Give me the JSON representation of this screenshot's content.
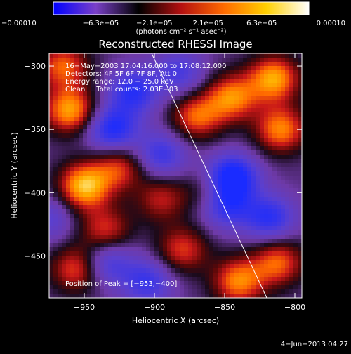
{
  "chart_data": {
    "type": "heatmap",
    "title": "Reconstructed RHESSI Image",
    "xlabel": "Heliocentric X (arcsec)",
    "ylabel": "Heliocentric Y (arcsec)",
    "xlim": [
      -975,
      -795
    ],
    "ylim": [
      -483,
      -290
    ],
    "x_ticks": [
      -950,
      -900,
      -850,
      -800
    ],
    "x_tick_labels": [
      "−950",
      "−900",
      "−850",
      "−800"
    ],
    "y_ticks": [
      -300,
      -350,
      -400,
      -450
    ],
    "y_tick_labels": [
      "−300",
      "−350",
      "−400",
      "−450"
    ],
    "colorbar": {
      "min": -0.0001,
      "max": 0.0001,
      "tick_values": [
        -0.0001,
        -6.3e-05,
        -2.1e-05,
        2.1e-05,
        6.3e-05,
        0.0001
      ],
      "tick_labels": [
        "−0.00010",
        "−6.3e−05",
        "−2.1e−05",
        "2.1e−05",
        "6.3e−05",
        "0.00010"
      ],
      "unit_label": "(photons cm⁻² s⁻¹ asec⁻²)",
      "colors": [
        "#0000ff",
        "#7a40c8",
        "#000000",
        "#b41010",
        "#ff6a00",
        "#ffd000",
        "#ffffff"
      ]
    },
    "annotations": {
      "time_range": "16−May−2003 17:04:16.000 to 17:08:12.000",
      "detectors": "Detectors: 4F 5F 6F 7F 8F, Att 0",
      "energy_range": "Energy range: 12.0 − 25.0 keV",
      "clean_counts": "Clean     Total counts: 2.03E+03",
      "peak_position": "Position of Peak = [−953,−400]"
    },
    "limb_line": {
      "points": [
        [
          -902,
          -290
        ],
        [
          -820,
          -483
        ]
      ]
    },
    "blobs": [
      {
        "x": -960,
        "y": -335,
        "v": 0.9
      },
      {
        "x": -965,
        "y": -300,
        "v": 0.7
      },
      {
        "x": -950,
        "y": -395,
        "v": 1.0
      },
      {
        "x": -925,
        "y": -380,
        "v": 0.6
      },
      {
        "x": -935,
        "y": -430,
        "v": 0.6
      },
      {
        "x": -955,
        "y": -460,
        "v": 0.7
      },
      {
        "x": -895,
        "y": -405,
        "v": 0.5
      },
      {
        "x": -880,
        "y": -445,
        "v": 0.6
      },
      {
        "x": -870,
        "y": -340,
        "v": 0.7
      },
      {
        "x": -845,
        "y": -325,
        "v": 0.8
      },
      {
        "x": -815,
        "y": -310,
        "v": 0.9
      },
      {
        "x": -810,
        "y": -350,
        "v": 0.8
      },
      {
        "x": -840,
        "y": -470,
        "v": 0.8
      },
      {
        "x": -812,
        "y": -455,
        "v": 0.7
      },
      {
        "x": -860,
        "y": -400,
        "v": 0.4
      },
      {
        "x": -845,
        "y": -388,
        "v": -1.0
      },
      {
        "x": -850,
        "y": -410,
        "v": -0.7
      },
      {
        "x": -930,
        "y": -350,
        "v": -0.8
      },
      {
        "x": -915,
        "y": -320,
        "v": -0.7
      },
      {
        "x": -935,
        "y": -455,
        "v": -0.6
      },
      {
        "x": -905,
        "y": -470,
        "v": -0.6
      },
      {
        "x": -895,
        "y": -370,
        "v": -0.6
      },
      {
        "x": -818,
        "y": -420,
        "v": -0.7
      },
      {
        "x": -882,
        "y": -305,
        "v": -0.5
      },
      {
        "x": -975,
        "y": -420,
        "v": -0.4
      }
    ]
  },
  "footer": {
    "date": "4−Jun−2013 04:27"
  }
}
